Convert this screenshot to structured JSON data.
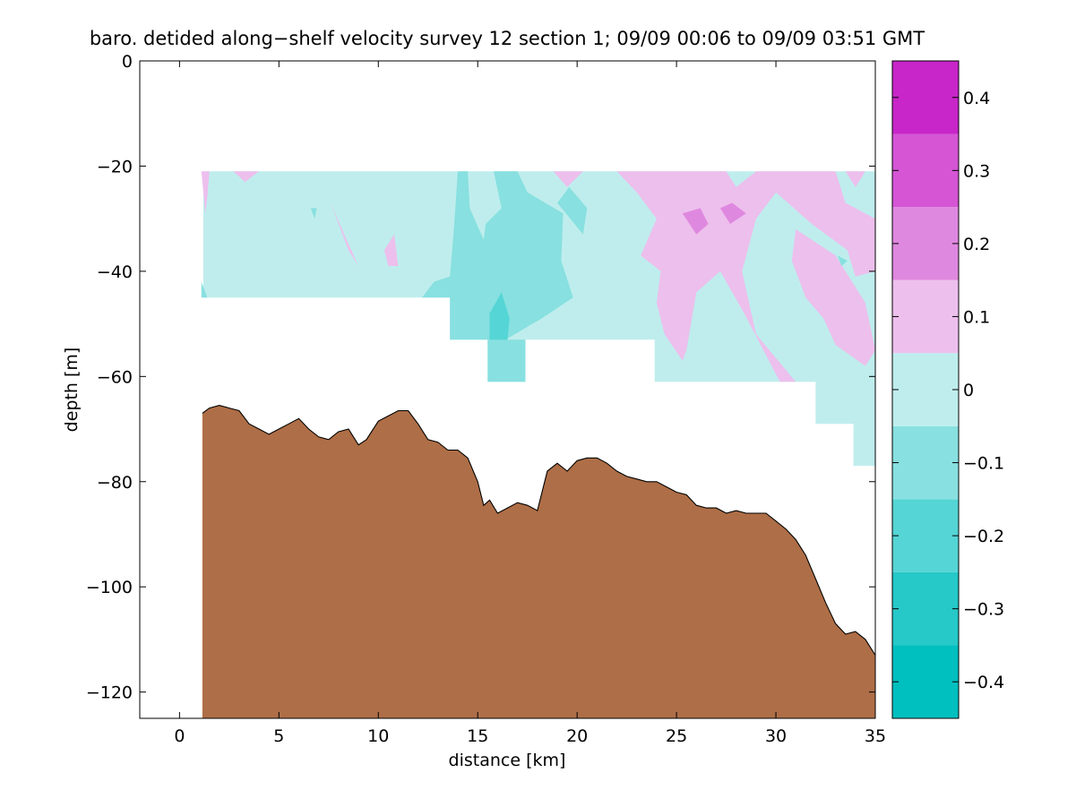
{
  "chart_data": {
    "type": "contour-section",
    "title": "baro. detided along−shelf velocity survey 12 section 1; 09/09 00:06 to 09/09 03:51 GMT",
    "xlabel": "distance [km]",
    "ylabel": "depth [m]",
    "xlim": [
      -2,
      35
    ],
    "ylim": [
      -125,
      0
    ],
    "x_ticks": [
      0,
      5,
      10,
      15,
      20,
      25,
      30,
      35
    ],
    "x_tick_labels": [
      "0",
      "5",
      "10",
      "15",
      "20",
      "25",
      "30",
      "35"
    ],
    "y_ticks": [
      0,
      -20,
      -40,
      -60,
      -80,
      -100,
      -120
    ],
    "y_tick_labels": [
      "0",
      "−20",
      "−40",
      "−60",
      "−80",
      "−100",
      "−120"
    ],
    "grid": false,
    "colorbar": {
      "orientation": "vertical",
      "position": "right",
      "range": [
        -0.45,
        0.45
      ],
      "levels": [
        -0.45,
        -0.35,
        -0.25,
        -0.15,
        -0.05,
        0.05,
        0.15,
        0.25,
        0.35,
        0.45
      ],
      "colors": [
        "#00bfbf",
        "#26c8c8",
        "#55d5d5",
        "#88e0e0",
        "#bfeded",
        "#edbfed",
        "#df88df",
        "#d555d5",
        "#c826c8",
        "#bf00bf"
      ],
      "ticks": [
        0.4,
        0.3,
        0.2,
        0.1,
        0,
        -0.1,
        -0.2,
        -0.3,
        -0.4
      ],
      "tick_labels": [
        "0.4",
        "0.3",
        "0.2",
        "0.1",
        "0",
        "−0.1",
        "−0.2",
        "−0.3",
        "−0.4"
      ]
    },
    "data_region": {
      "top_depth": -21,
      "bottom_outline": [
        [
          1.2,
          -45
        ],
        [
          13.6,
          -45
        ],
        [
          13.6,
          -53
        ],
        [
          15.5,
          -53
        ],
        [
          15.5,
          -61
        ],
        [
          17.4,
          -61
        ],
        [
          17.4,
          -53
        ],
        [
          23.9,
          -53
        ],
        [
          23.9,
          -61
        ],
        [
          32,
          -61
        ],
        [
          32,
          -69
        ],
        [
          33.9,
          -69
        ],
        [
          33.9,
          -77
        ],
        [
          35,
          -77
        ],
        [
          35,
          -21
        ]
      ],
      "background_color": "#bfeded"
    },
    "velocity_patches": [
      {
        "color": "#edbfed",
        "points": [
          [
            1.1,
            -21
          ],
          [
            1.5,
            -21
          ],
          [
            1.4,
            -26
          ],
          [
            1.3,
            -29
          ]
        ]
      },
      {
        "color": "#edbfed",
        "points": [
          [
            2.7,
            -21
          ],
          [
            4.0,
            -21
          ],
          [
            3.3,
            -23
          ]
        ]
      },
      {
        "color": "#edbfed",
        "points": [
          [
            7.6,
            -27
          ],
          [
            8.5,
            -36
          ],
          [
            9.0,
            -39
          ],
          [
            8.4,
            -34
          ]
        ]
      },
      {
        "color": "#edbfed",
        "points": [
          [
            10.3,
            -36
          ],
          [
            10.8,
            -33
          ],
          [
            11.0,
            -39
          ],
          [
            10.5,
            -39
          ]
        ]
      },
      {
        "color": "#edbfed",
        "points": [
          [
            18.8,
            -21
          ],
          [
            20.3,
            -21
          ],
          [
            19.5,
            -24
          ]
        ]
      },
      {
        "color": "#edbfed",
        "points": [
          [
            22.0,
            -21
          ],
          [
            27.5,
            -21
          ],
          [
            28.0,
            -24
          ],
          [
            29.0,
            -21
          ],
          [
            33.0,
            -21
          ],
          [
            33.5,
            -27
          ],
          [
            35.0,
            -30
          ],
          [
            35.0,
            -40
          ],
          [
            34.0,
            -41
          ],
          [
            33.6,
            -36
          ],
          [
            31.8,
            -31
          ],
          [
            30.0,
            -25
          ],
          [
            29.0,
            -30
          ],
          [
            28.3,
            -40
          ],
          [
            29.0,
            -52
          ],
          [
            31.0,
            -61
          ],
          [
            30.2,
            -61
          ],
          [
            28.4,
            -48
          ],
          [
            27.2,
            -40
          ],
          [
            26.0,
            -44
          ],
          [
            25.5,
            -55
          ],
          [
            25.3,
            -57
          ],
          [
            24.4,
            -52
          ],
          [
            24.0,
            -46
          ],
          [
            24.2,
            -40
          ],
          [
            23.2,
            -37
          ],
          [
            24.0,
            -30
          ],
          [
            23.0,
            -25
          ]
        ]
      },
      {
        "color": "#edbfed",
        "points": [
          [
            31.0,
            -32
          ],
          [
            33.0,
            -37
          ],
          [
            34.5,
            -46
          ],
          [
            35.0,
            -55
          ],
          [
            34.5,
            -58
          ],
          [
            33.0,
            -54
          ],
          [
            32.4,
            -49
          ],
          [
            31.5,
            -45
          ],
          [
            30.8,
            -38
          ]
        ]
      },
      {
        "color": "#edbfed",
        "points": [
          [
            33.5,
            -21
          ],
          [
            34.5,
            -21
          ],
          [
            34.0,
            -24
          ]
        ]
      },
      {
        "color": "#df88df",
        "points": [
          [
            25.3,
            -29
          ],
          [
            26.2,
            -28
          ],
          [
            26.6,
            -31
          ],
          [
            26.0,
            -33
          ]
        ]
      },
      {
        "color": "#df88df",
        "points": [
          [
            27.2,
            -28
          ],
          [
            27.8,
            -27
          ],
          [
            28.5,
            -29
          ],
          [
            27.7,
            -31
          ]
        ]
      },
      {
        "color": "#88e0e0",
        "points": [
          [
            14.0,
            -21
          ],
          [
            14.5,
            -21
          ],
          [
            14.6,
            -28
          ],
          [
            15.3,
            -34
          ],
          [
            15.4,
            -31
          ],
          [
            16.2,
            -28
          ],
          [
            15.8,
            -21
          ],
          [
            17.0,
            -21
          ],
          [
            17.5,
            -25
          ],
          [
            19.3,
            -29
          ],
          [
            19.2,
            -38
          ],
          [
            19.8,
            -45
          ],
          [
            18.2,
            -49
          ],
          [
            16.4,
            -53
          ],
          [
            15.5,
            -53
          ],
          [
            15.5,
            -61
          ],
          [
            17.4,
            -61
          ],
          [
            17.4,
            -53
          ],
          [
            13.6,
            -53
          ],
          [
            13.6,
            -45
          ],
          [
            12.2,
            -45
          ],
          [
            12.8,
            -42
          ],
          [
            13.6,
            -41
          ],
          [
            13.8,
            -32
          ]
        ]
      },
      {
        "color": "#55d5d5",
        "points": [
          [
            15.6,
            -48
          ],
          [
            16.2,
            -44
          ],
          [
            16.6,
            -49
          ],
          [
            16.5,
            -53
          ],
          [
            15.6,
            -53
          ]
        ]
      },
      {
        "color": "#88e0e0",
        "points": [
          [
            19.0,
            -27
          ],
          [
            19.6,
            -24
          ],
          [
            20.5,
            -28
          ],
          [
            20.3,
            -33
          ]
        ]
      },
      {
        "color": "#88e0e0",
        "points": [
          [
            1.1,
            -42
          ],
          [
            1.4,
            -45
          ],
          [
            1.1,
            -45
          ]
        ]
      },
      {
        "color": "#88e0e0",
        "points": [
          [
            6.6,
            -28
          ],
          [
            6.9,
            -28
          ],
          [
            6.8,
            -30
          ]
        ]
      },
      {
        "color": "#88e0e0",
        "points": [
          [
            33.1,
            -37
          ],
          [
            33.6,
            -38
          ],
          [
            33.3,
            -39
          ]
        ]
      }
    ],
    "bathymetry": {
      "fill_color": "#ae6e47",
      "outline_color": "#000000",
      "bottom_depth": -125,
      "profile": [
        [
          1.15,
          -125
        ],
        [
          1.15,
          -67
        ],
        [
          1.5,
          -66
        ],
        [
          2.0,
          -65.5
        ],
        [
          2.5,
          -66
        ],
        [
          3.0,
          -66.5
        ],
        [
          3.5,
          -69
        ],
        [
          4.0,
          -70
        ],
        [
          4.5,
          -71
        ],
        [
          5.0,
          -70
        ],
        [
          5.5,
          -69
        ],
        [
          6.0,
          -68
        ],
        [
          6.5,
          -70
        ],
        [
          7.0,
          -71.5
        ],
        [
          7.5,
          -72
        ],
        [
          8.0,
          -70.5
        ],
        [
          8.5,
          -70
        ],
        [
          9.0,
          -73
        ],
        [
          9.4,
          -72
        ],
        [
          10.0,
          -68.5
        ],
        [
          10.5,
          -67.5
        ],
        [
          11.0,
          -66.5
        ],
        [
          11.5,
          -66.5
        ],
        [
          12.0,
          -69
        ],
        [
          12.5,
          -72
        ],
        [
          13.0,
          -72.5
        ],
        [
          13.5,
          -74
        ],
        [
          14.0,
          -74
        ],
        [
          14.5,
          -75.5
        ],
        [
          15.0,
          -80
        ],
        [
          15.3,
          -84.5
        ],
        [
          15.6,
          -83.5
        ],
        [
          16.0,
          -86
        ],
        [
          16.5,
          -85
        ],
        [
          17.0,
          -84
        ],
        [
          17.5,
          -84.5
        ],
        [
          18.0,
          -85.5
        ],
        [
          18.5,
          -78
        ],
        [
          19.0,
          -76.5
        ],
        [
          19.5,
          -78
        ],
        [
          20.0,
          -76
        ],
        [
          20.5,
          -75.5
        ],
        [
          21.0,
          -75.5
        ],
        [
          21.5,
          -76.5
        ],
        [
          22.0,
          -78
        ],
        [
          22.5,
          -79
        ],
        [
          23.0,
          -79.5
        ],
        [
          23.5,
          -80
        ],
        [
          24.0,
          -80
        ],
        [
          24.5,
          -81
        ],
        [
          25.0,
          -82
        ],
        [
          25.5,
          -82.5
        ],
        [
          26.0,
          -84.5
        ],
        [
          26.5,
          -85
        ],
        [
          27.0,
          -85
        ],
        [
          27.5,
          -86
        ],
        [
          28.0,
          -85.5
        ],
        [
          28.5,
          -86
        ],
        [
          29.0,
          -86
        ],
        [
          29.5,
          -86
        ],
        [
          30.0,
          -87.5
        ],
        [
          30.5,
          -89
        ],
        [
          31.0,
          -91
        ],
        [
          31.5,
          -94
        ],
        [
          32.0,
          -98.5
        ],
        [
          32.5,
          -103
        ],
        [
          33.0,
          -107
        ],
        [
          33.5,
          -109
        ],
        [
          34.0,
          -108.5
        ],
        [
          34.5,
          -110
        ],
        [
          35.0,
          -113
        ],
        [
          35.0,
          -125
        ]
      ]
    }
  }
}
